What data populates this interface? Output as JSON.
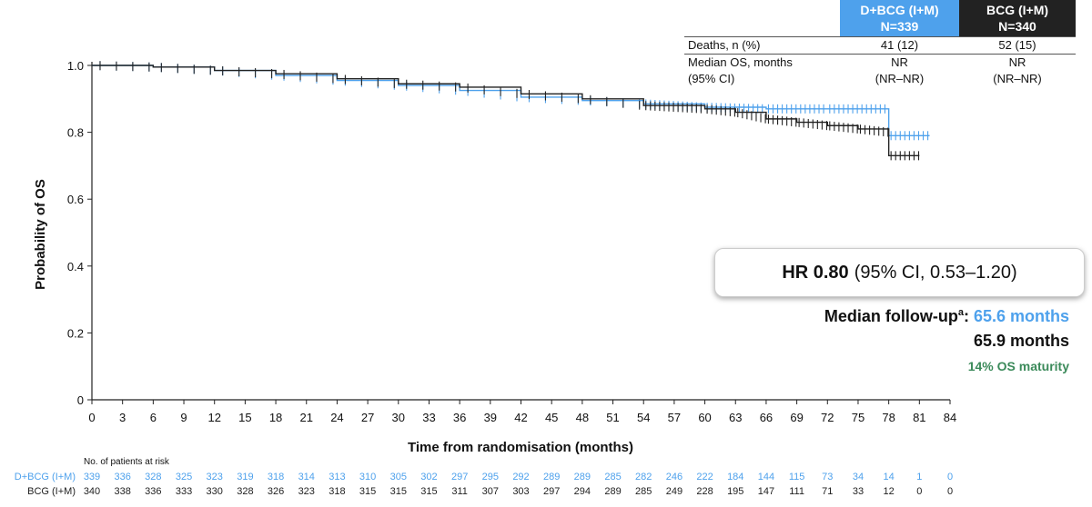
{
  "chart_data": {
    "type": "line",
    "title": "",
    "ylabel": "Probability of OS",
    "xlabel": "Time from randomisation (months)",
    "xlim": [
      0,
      84
    ],
    "ylim": [
      0,
      1.0
    ],
    "x_ticks": [
      0,
      3,
      6,
      9,
      12,
      15,
      18,
      21,
      24,
      27,
      30,
      33,
      36,
      39,
      42,
      45,
      48,
      51,
      54,
      57,
      60,
      63,
      66,
      69,
      72,
      75,
      78,
      81,
      84
    ],
    "y_ticks": [
      {
        "value": 0,
        "label": "0"
      },
      {
        "value": 0.2,
        "label": "0.2"
      },
      {
        "value": 0.4,
        "label": "0.4"
      },
      {
        "value": 0.6,
        "label": "0.6"
      },
      {
        "value": 0.8,
        "label": "0.8"
      },
      {
        "value": 1.0,
        "label": "1.0"
      }
    ],
    "series": [
      {
        "name": "D+BCG (I+M)",
        "color": "#4ea1ec",
        "points": [
          [
            0,
            1.0
          ],
          [
            6,
            0.995
          ],
          [
            12,
            0.985
          ],
          [
            18,
            0.97
          ],
          [
            24,
            0.955
          ],
          [
            30,
            0.94
          ],
          [
            36,
            0.925
          ],
          [
            42,
            0.905
          ],
          [
            48,
            0.895
          ],
          [
            54,
            0.885
          ],
          [
            60,
            0.875
          ],
          [
            66,
            0.87
          ],
          [
            72,
            0.87
          ],
          [
            78,
            0.87
          ],
          [
            78,
            0.79
          ],
          [
            82,
            0.79
          ]
        ]
      },
      {
        "name": "BCG (I+M)",
        "color": "#222222",
        "points": [
          [
            0,
            1.0
          ],
          [
            6,
            0.995
          ],
          [
            12,
            0.985
          ],
          [
            18,
            0.975
          ],
          [
            24,
            0.96
          ],
          [
            30,
            0.945
          ],
          [
            36,
            0.935
          ],
          [
            42,
            0.915
          ],
          [
            48,
            0.9
          ],
          [
            54,
            0.88
          ],
          [
            60,
            0.87
          ],
          [
            63,
            0.86
          ],
          [
            66,
            0.84
          ],
          [
            69,
            0.83
          ],
          [
            72,
            0.82
          ],
          [
            75,
            0.81
          ],
          [
            78,
            0.8
          ],
          [
            78,
            0.73
          ],
          [
            81,
            0.73
          ]
        ]
      }
    ],
    "at_risk": {
      "title": "No. of patients at risk",
      "rows": [
        {
          "label": "D+BCG (I+M)",
          "color": "#4ea1ec",
          "values": [
            "339",
            "336",
            "328",
            "325",
            "323",
            "319",
            "318",
            "314",
            "313",
            "310",
            "305",
            "302",
            "297",
            "295",
            "292",
            "289",
            "289",
            "285",
            "282",
            "246",
            "222",
            "184",
            "144",
            "115",
            "73",
            "34",
            "14",
            "1",
            "0"
          ]
        },
        {
          "label": "BCG (I+M)",
          "color": "#222222",
          "values": [
            "340",
            "338",
            "336",
            "333",
            "330",
            "328",
            "326",
            "323",
            "318",
            "315",
            "315",
            "315",
            "311",
            "307",
            "303",
            "297",
            "294",
            "289",
            "285",
            "249",
            "228",
            "195",
            "147",
            "111",
            "71",
            "33",
            "12",
            "0",
            "0"
          ]
        }
      ]
    }
  },
  "summary_table": {
    "col1_header": "D+BCG (I+M)",
    "col1_n": "N=339",
    "col2_header": "BCG (I+M)",
    "col2_n": "N=340",
    "row1_label": "Deaths, n (%)",
    "row1_col1": "41 (12)",
    "row1_col2": "52 (15)",
    "row2_label": "Median OS, months",
    "row2_label2": "(95% CI)",
    "row2_col1": "NR",
    "row2_col1b": "(NR–NR)",
    "row2_col2": "NR",
    "row2_col2b": "(NR–NR)"
  },
  "hr_box": {
    "hr_bold": "HR 0.80",
    "hr_ci": "(95% CI, 0.53–1.20)"
  },
  "follow_up": {
    "label": "Median follow-up",
    "sup": "a",
    "colon": ":",
    "val1": "65.6 months",
    "val2": "65.9 months",
    "maturity": "14% OS maturity"
  }
}
